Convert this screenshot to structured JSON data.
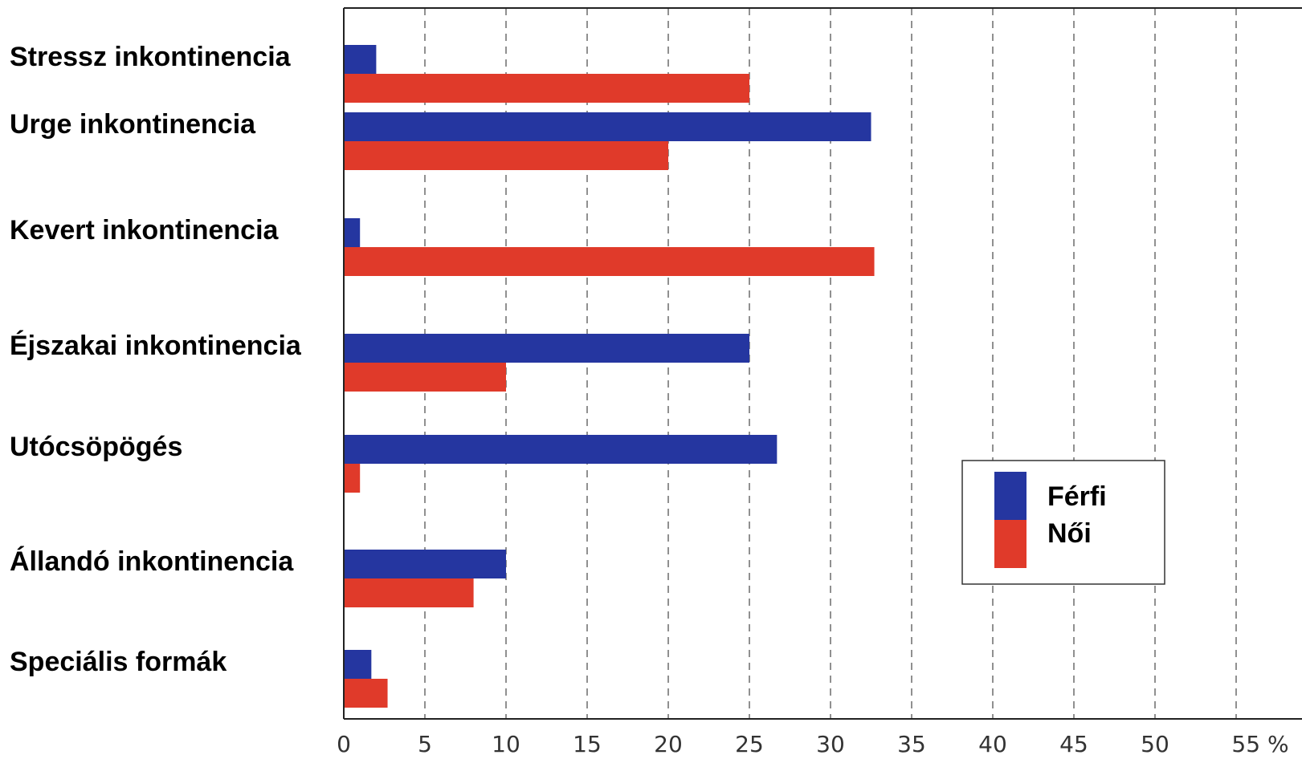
{
  "chart_data": {
    "type": "bar",
    "orientation": "horizontal",
    "categories": [
      "Stressz inkontinencia",
      "Urge inkontinencia",
      "Kevert inkontinencia",
      "Éjszakai inkontinencia",
      "Utócsöpögés",
      "Állandó inkontinencia",
      "Speciális formák"
    ],
    "series": [
      {
        "name": "Férfi",
        "color": "#2536a0",
        "values": [
          2,
          32.5,
          1,
          25,
          26.7,
          10,
          1.7
        ]
      },
      {
        "name": "Női",
        "color": "#e03a2a",
        "values": [
          25,
          20,
          32.7,
          10,
          1,
          8,
          2.7
        ]
      }
    ],
    "xticks": [
      "0",
      "5",
      "10",
      "15",
      "20",
      "25",
      "30",
      "35",
      "40",
      "45",
      "50",
      "55 %"
    ],
    "xlim": [
      0,
      58
    ],
    "grid": true,
    "legend_position": "right"
  }
}
